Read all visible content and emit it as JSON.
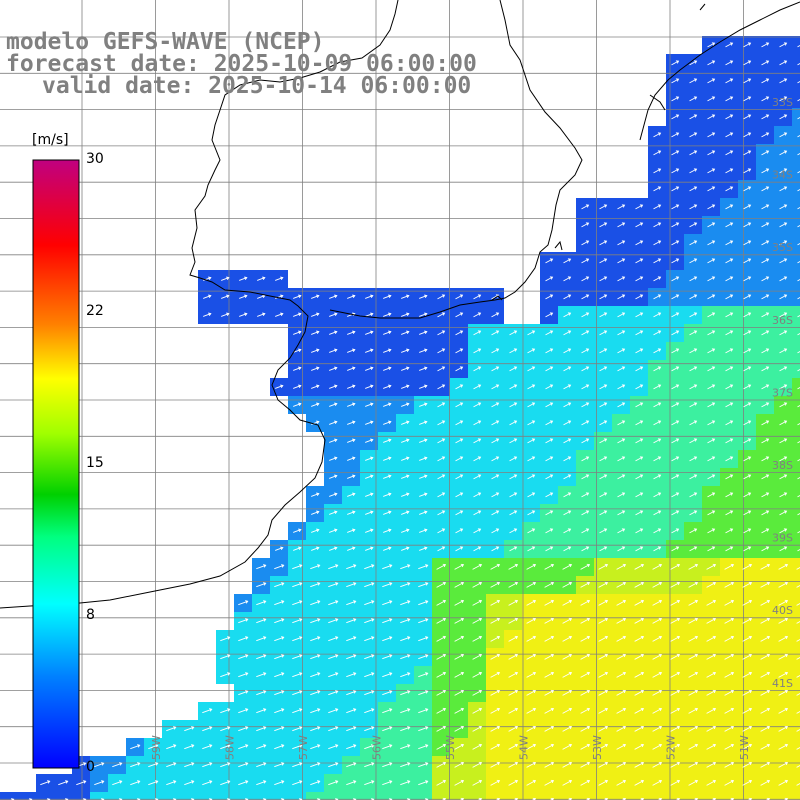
{
  "titles": {
    "line1": "modelo GEFS-WAVE (NCEP)",
    "line2": "forecast date: 2025-10-09 06:00:00",
    "line3": "valid date: 2025-10-14 06:00:00"
  },
  "colorbar": {
    "unit": "[m/s]",
    "ticks": [
      "30",
      "22",
      "15",
      "8",
      "0"
    ],
    "colors": [
      "#0000ff",
      "#0080ff",
      "#00ffff",
      "#00ff80",
      "#00c000",
      "#80ff00",
      "#ffff00",
      "#ff8000",
      "#ff0000",
      "#c00080"
    ]
  },
  "grid": {
    "lat_labels": [
      "33S",
      "34S",
      "35S",
      "36S",
      "37S",
      "38S",
      "39S",
      "40S",
      "41S"
    ],
    "lon_labels": [
      "59W",
      "58W",
      "57W",
      "56W",
      "55W",
      "54W",
      "53W",
      "52W",
      "51W"
    ]
  },
  "field": {
    "variable": "wind speed",
    "shading_colors": {
      "coast_blue": "#1a50e6",
      "mid_blue": "#1a8cf0",
      "cyan": "#19dcf0",
      "aqua_green": "#3cf0a0",
      "green": "#5aeb3c",
      "yellow_green": "#c8f01e",
      "yellow": "#f0f014"
    },
    "arrow_color": "#ffffff"
  }
}
